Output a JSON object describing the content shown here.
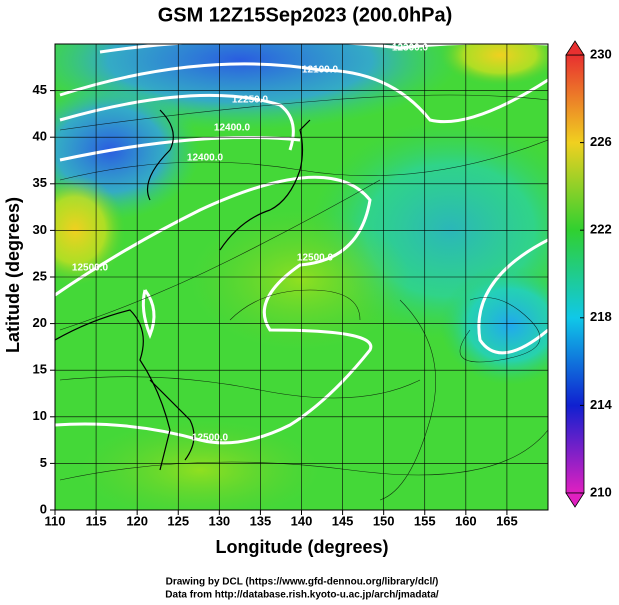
{
  "title": "GSM 12Z15Sep2023 (200.0hPa)",
  "x_axis": {
    "label": "Longitude (degrees)",
    "lim": [
      110,
      170
    ],
    "ticks": [
      110,
      115,
      120,
      125,
      130,
      135,
      140,
      145,
      150,
      155,
      160,
      165
    ]
  },
  "y_axis": {
    "label": "Latitude  (degrees)",
    "lim": [
      0,
      50
    ],
    "ticks": [
      0,
      5,
      10,
      15,
      20,
      25,
      30,
      35,
      40,
      45
    ]
  },
  "colorbar": {
    "lim": [
      210,
      230
    ],
    "ticks": [
      210,
      214,
      218,
      222,
      226,
      230
    ],
    "colors": [
      "#e020c0",
      "#1020d0",
      "#10c8e8",
      "#30d030",
      "#f0d020",
      "#e83030"
    ]
  },
  "contour_labels": [
    "12300.0",
    "12100.0",
    "12250.0",
    "12400.0",
    "12400.0",
    "12500.0",
    "12500.0",
    "12500.0"
  ],
  "credits": [
    "Drawing by DCL (https://www.gfd-dennou.org/library/dcl/)",
    "Data from http://database.rish.kyoto-u.ac.jp/arch/jmadata/"
  ]
}
